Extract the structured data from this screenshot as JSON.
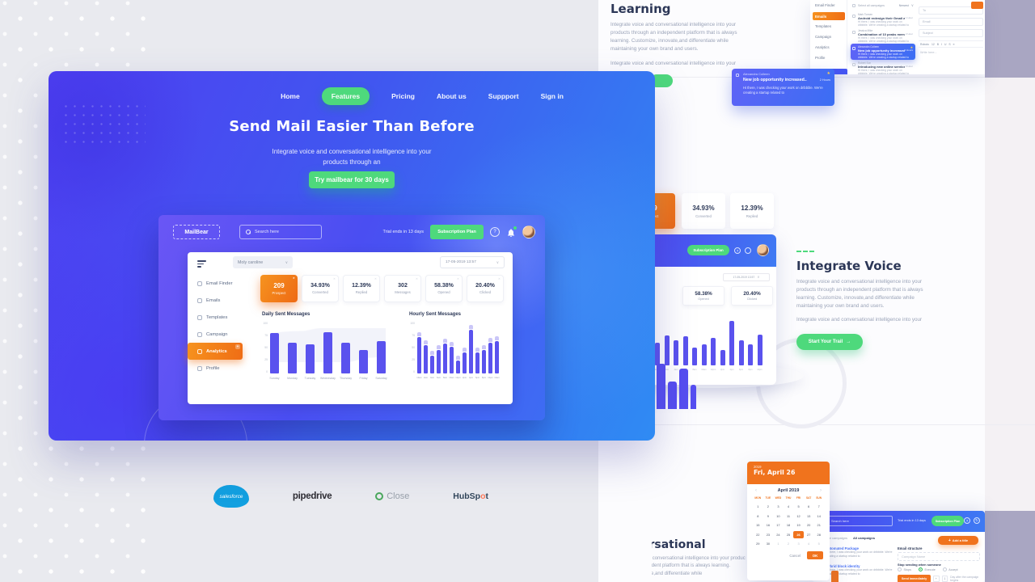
{
  "colors": {
    "accent_green": "#4ed97c",
    "accent_orange": "#f0731d",
    "indigo": "#5a52ee",
    "navy": "#2d3958",
    "hero_blue": "#3f58f0"
  },
  "hero": {
    "nav_items": [
      {
        "label": "Home",
        "active": false
      },
      {
        "label": "Features",
        "active": true
      },
      {
        "label": "Pricing",
        "active": false
      },
      {
        "label": "About us",
        "active": false
      },
      {
        "label": "Suppport",
        "active": false
      },
      {
        "label": "Sign in",
        "active": false
      }
    ],
    "title": "Send Mail Easier Than Before",
    "subtitle_line1": "Integrate voice and conversational intelligence into your",
    "subtitle_line2": "products through an",
    "cta_label": "Try mailbear for 30 days"
  },
  "dashboard": {
    "logo": "MailBear",
    "search_placeholder": "Search here",
    "trial_text": "Trial ends in 13 days",
    "subscription_label": "Subscription Plan",
    "owner_dropdown": "Moly caroline",
    "date_dropdown": "17-05-2019 13:57",
    "sidebar_items": [
      {
        "label": "Email Finder",
        "active": false
      },
      {
        "label": "Emails",
        "active": false
      },
      {
        "label": "Templates",
        "active": false
      },
      {
        "label": "Campaign",
        "active": false
      },
      {
        "label": "Analytics",
        "active": true
      },
      {
        "label": "Profile",
        "active": false
      }
    ],
    "stat_cards": [
      {
        "value": "209",
        "label": "Prospect",
        "highlight": true
      },
      {
        "value": "34.93%",
        "label": "Converted",
        "highlight": false
      },
      {
        "value": "12.39%",
        "label": "Replied",
        "highlight": false
      },
      {
        "value": "302",
        "label": "Messages",
        "highlight": false
      },
      {
        "value": "58.38%",
        "label": "Opened",
        "highlight": false
      },
      {
        "value": "20.40%",
        "label": "Clicked",
        "highlight": false
      }
    ]
  },
  "chart_data": [
    {
      "type": "bar",
      "title": "Daily Sent Messages",
      "categories": [
        "Sunday",
        "Monday",
        "Tuesday",
        "Wednesday",
        "Thursday",
        "Friday",
        "Saturday"
      ],
      "values": [
        78,
        60,
        57,
        80,
        60,
        45,
        63
      ],
      "ylim": [
        0,
        100
      ],
      "yticks": [
        "100",
        "75",
        "50",
        "25",
        "0"
      ],
      "bar_color": "#5a52ee",
      "grid": false,
      "legend": false
    },
    {
      "type": "bar",
      "title": "Hourly Sent Messages",
      "categories": [
        "12am",
        "2am",
        "4am",
        "6am",
        "8am",
        "10am",
        "12pm",
        "2pm",
        "4pm",
        "6pm",
        "8pm",
        "10pm",
        "12am"
      ],
      "series": [
        {
          "name": "Sent",
          "values": [
            70,
            55,
            35,
            45,
            58,
            52,
            25,
            40,
            85,
            40,
            46,
            60,
            62
          ]
        },
        {
          "name": "Pending",
          "values": [
            8,
            8,
            8,
            8,
            8,
            8,
            8,
            8,
            8,
            8,
            8,
            8,
            8
          ]
        }
      ],
      "ylim": [
        0,
        100
      ],
      "yticks": [
        "100",
        "75",
        "50",
        "25",
        "0"
      ],
      "bar_color": "#5a52ee",
      "cap_color": "#cac6f8",
      "grid": false
    },
    {
      "type": "bar",
      "title": "Hourly Sent Messages (mini dashboard)",
      "categories": [
        "12am",
        "2am",
        "4am",
        "6am",
        "8am",
        "10am",
        "12pm",
        "2pm",
        "4pm",
        "6pm",
        "8pm",
        "10pm"
      ],
      "values": [
        45,
        60,
        50,
        58,
        35,
        42,
        55,
        30,
        88,
        50,
        42,
        62
      ],
      "ylim": [
        0,
        100
      ],
      "bar_color": "#5a52ee",
      "grid": false
    }
  ],
  "logos": {
    "items": [
      "salesforce",
      "pipedrive",
      "Close",
      "HubSpot"
    ]
  },
  "sections": {
    "learning": {
      "heading": "Learning",
      "body": "Integrate voice and conversational intelligence into your products through an independent platform that is always learning. Customize, innovate,and differentiate while maintaining your own brand and users.",
      "body2": "Integrate voice and conversational intelligence into your"
    },
    "integrate_voice": {
      "heading": "Integrate Voice",
      "body": "Integrate voice and conversational intelligence into your products through an independent platform that is always learning. Customize, innovate,and differentiate while maintaining your own brand and users.",
      "body2": "Integrate voice and conversational intelligence into your",
      "cta": "Start Your Trail",
      "cta_arrow": "→"
    },
    "conversational": {
      "heading": "Conversational",
      "body": "Integrate voice and conversational intelligence into your products through an independent platform that is always learning. Customize, innovate,and differentiate while"
    }
  },
  "notification": {
    "sender": "Alexandra Colleen",
    "subject": "New job opportunity increased..",
    "time": "2 Hours",
    "preview": "Hi there, I was checking your work on dribbble. We're creating a startup related to"
  },
  "stats_band": [
    {
      "value": "209",
      "label": "Prospect",
      "highlight": true
    },
    {
      "value": "34.93%",
      "label": "Converted",
      "highlight": false
    },
    {
      "value": "12.39%",
      "label": "Replied",
      "highlight": false
    }
  ],
  "mini_dashboard": {
    "subscription_label": "Subscription Plan",
    "help_icon": "?",
    "date_dropdown": "17-05-2019 13:57",
    "stats": [
      {
        "value": "58.38%",
        "label": "Opened"
      },
      {
        "value": "20.40%",
        "label": "Clicked"
      }
    ]
  },
  "email_app": {
    "sidebar_items": [
      {
        "label": "Email Finder",
        "active": false
      },
      {
        "label": "Emails",
        "active": true
      },
      {
        "label": "Templates",
        "active": false
      },
      {
        "label": "Campaign",
        "active": false
      },
      {
        "label": "Analytics",
        "active": false
      },
      {
        "label": "Profile",
        "active": false
      }
    ],
    "list_header": {
      "select_all": "Select all campaigns",
      "sort": "Newest"
    },
    "emails": [
      {
        "sender": "Mark Tonsen",
        "subject": "Android redesign their Gmail after..",
        "time": "1 Hour",
        "preview": "Hi there, I was checking your work on dribbble. We're creating a startup related to",
        "selected": false
      },
      {
        "sender": "Jessica Mike",
        "subject": "Combination of 10 peaks member",
        "time": "2 Hour",
        "preview": "Hi there, I was checking your work on dribbble. We're creating a startup related to",
        "selected": false
      },
      {
        "sender": "Alexandra Colleen",
        "subject": "New job opportunity increased..",
        "time": "2 Hours",
        "preview": "Hi there, I was checking your work on dribbble. We're creating a startup related to",
        "selected": true
      },
      {
        "sender": "Robert Son",
        "subject": "Introducing new online services",
        "time": "3 Hour",
        "preview": "Hi there, I was checking your work on dribbble. We're creating a startup related to",
        "selected": false
      }
    ],
    "compose": {
      "fields": [
        "To",
        "Email",
        "Subject"
      ],
      "toolbar": [
        "Roboto",
        "12",
        "B",
        "I",
        "U",
        "S",
        "≡"
      ],
      "body_placeholder": "Write here...",
      "send_label": "Send"
    }
  },
  "calendar": {
    "header_year": "2019",
    "header_date": "Fri, April 26",
    "month_label": "April 2019",
    "prev_icon": "‹",
    "next_icon": "›",
    "weekdays": [
      "MON",
      "TUE",
      "WED",
      "THU",
      "FRI",
      "SAT",
      "SUN"
    ],
    "weeks": [
      [
        "1",
        "2",
        "3",
        "4",
        "5",
        "6",
        "7"
      ],
      [
        "8",
        "9",
        "10",
        "11",
        "12",
        "13",
        "14"
      ],
      [
        "15",
        "16",
        "17",
        "18",
        "19",
        "20",
        "21"
      ],
      [
        "22",
        "23",
        "24",
        "25",
        "26",
        "27",
        "28"
      ],
      [
        "29",
        "30",
        "1",
        "2",
        "3",
        "4",
        "5"
      ]
    ],
    "selected_date": "26",
    "cancel_label": "Cancel",
    "ok_label": "OK"
  },
  "campaign_app": {
    "search_placeholder": "Search here",
    "trial_text": "Trial ends in 13 days",
    "subscription_label": "Subscription Plan",
    "tabs": [
      "Favorite campaigns",
      "All campaigns"
    ],
    "campaigns": [
      {
        "title": "Automated Package",
        "desc": "Hi there, I was checking your work on dribbble. We're creating a startup related to"
      },
      {
        "title": "Hybrid block identity",
        "desc": "Hi there, I was checking your work on dribbble. We're creating a startup related to"
      }
    ],
    "add_button": "Add a title",
    "form": {
      "section_label": "Email structure",
      "name_placeholder": "Campaign Name",
      "stop_label": "Stop sending when someone",
      "options": [
        {
          "label": "Stops",
          "selected": false
        },
        {
          "label": "Execute",
          "selected": true
        },
        {
          "label": "Accept",
          "selected": false
        }
      ],
      "send_button": "Send immediately",
      "stepper": [
        "+",
        "1"
      ],
      "after_text": "Day after the campaign begins"
    }
  },
  "decor_bars": [
    56,
    34,
    50,
    30
  ]
}
